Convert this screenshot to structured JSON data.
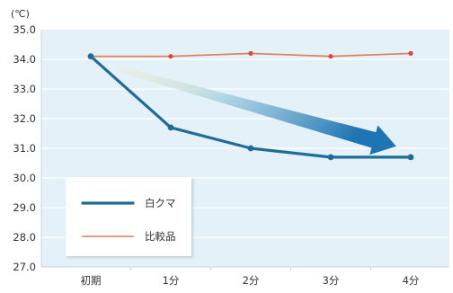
{
  "chart_data": {
    "type": "line",
    "unit_label": "(℃)",
    "categories": [
      "初期",
      "1分",
      "2分",
      "3分",
      "4分"
    ],
    "ylim": [
      27.0,
      35.0
    ],
    "yticks": [
      "35.0",
      "34.0",
      "33.0",
      "32.0",
      "31.0",
      "30.0",
      "29.0",
      "28.0",
      "27.0"
    ],
    "grid": true,
    "legend_position": "bottom-left",
    "series": [
      {
        "name": "白クマ",
        "values": [
          34.1,
          31.7,
          31.0,
          30.7,
          30.7
        ],
        "color": "#1e6d99"
      },
      {
        "name": "比較品",
        "values": [
          34.1,
          34.1,
          34.2,
          34.1,
          34.2
        ],
        "color": "#e07a52"
      }
    ],
    "colors": {
      "plot_background": "#e5f1f9",
      "gridline": "#ffffff",
      "axis": "#c9d7e2",
      "marker": "#d94a3a",
      "arrow_start": "#f2e9a6",
      "arrow_mid": "#9fcde0",
      "arrow_end": "#1f74b4"
    }
  }
}
